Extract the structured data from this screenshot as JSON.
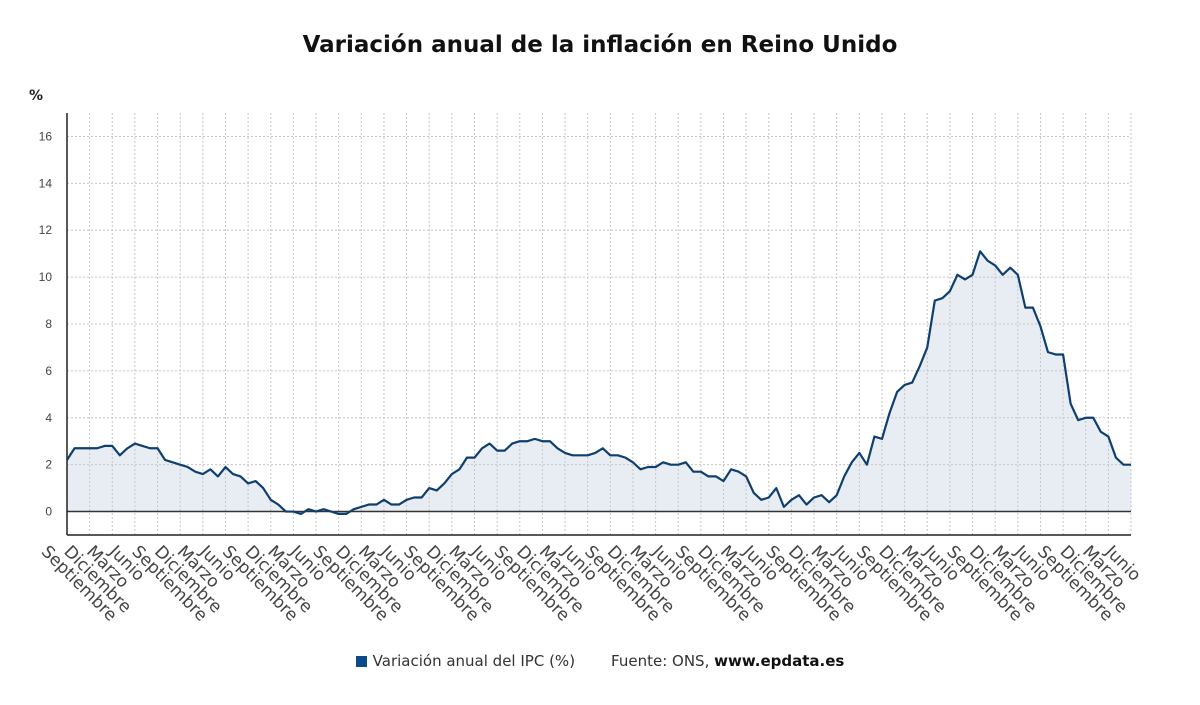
{
  "chart_data": {
    "type": "area",
    "title": "Variación anual de la inflación en Reino Unido",
    "ylabel": "%",
    "xlabel": "",
    "ylim": [
      -1,
      17
    ],
    "yticks": [
      0,
      2,
      4,
      6,
      8,
      10,
      12,
      14,
      16
    ],
    "grid": true,
    "legend_position": "bottom",
    "colors": {
      "line": "#0e3f6e",
      "fill": "#e8ecf3",
      "legend": "#0d4a8c",
      "grid": "#c6c6c6"
    },
    "xtick_labels": [
      "Septiembre",
      "Diciembre",
      "Marzo",
      "Junio",
      "Septiembre",
      "Diciembre",
      "Marzo",
      "Junio",
      "Septiembre",
      "Diciembre",
      "Marzo",
      "Junio",
      "Septiembre",
      "Diciembre",
      "Marzo",
      "Junio",
      "Septiembre",
      "Diciembre",
      "Marzo",
      "Junio",
      "Septiembre",
      "Diciembre",
      "Marzo",
      "Junio",
      "Septiembre",
      "Diciembre",
      "Marzo",
      "Junio",
      "Septiembre",
      "Diciembre",
      "Marzo",
      "Junio",
      "Septiembre",
      "Diciembre",
      "Marzo",
      "Junio",
      "Septiembre",
      "Diciembre",
      "Marzo",
      "Junio",
      "Septiembre",
      "Diciembre",
      "Marzo",
      "Junio",
      "Septiembre",
      "Diciembre",
      "Marzo",
      "Junio"
    ],
    "series": [
      {
        "name": "Variación anual del IPC (%)",
        "values": [
          2.2,
          2.7,
          2.7,
          2.7,
          2.7,
          2.8,
          2.8,
          2.4,
          2.7,
          2.9,
          2.8,
          2.7,
          2.7,
          2.2,
          2.1,
          2.0,
          1.9,
          1.7,
          1.6,
          1.8,
          1.5,
          1.9,
          1.6,
          1.5,
          1.2,
          1.3,
          1.0,
          0.5,
          0.3,
          0.0,
          0.0,
          -0.1,
          0.1,
          0.0,
          0.1,
          0.0,
          -0.1,
          -0.1,
          0.1,
          0.2,
          0.3,
          0.3,
          0.5,
          0.3,
          0.3,
          0.5,
          0.6,
          0.6,
          1.0,
          0.9,
          1.2,
          1.6,
          1.8,
          2.3,
          2.3,
          2.7,
          2.9,
          2.6,
          2.6,
          2.9,
          3.0,
          3.0,
          3.1,
          3.0,
          3.0,
          2.7,
          2.5,
          2.4,
          2.4,
          2.4,
          2.5,
          2.7,
          2.4,
          2.4,
          2.3,
          2.1,
          1.8,
          1.9,
          1.9,
          2.1,
          2.0,
          2.0,
          2.1,
          1.7,
          1.7,
          1.5,
          1.5,
          1.3,
          1.8,
          1.7,
          1.5,
          0.8,
          0.5,
          0.6,
          1.0,
          0.2,
          0.5,
          0.7,
          0.3,
          0.6,
          0.7,
          0.4,
          0.7,
          1.5,
          2.1,
          2.5,
          2.0,
          3.2,
          3.1,
          4.2,
          5.1,
          5.4,
          5.5,
          6.2,
          7.0,
          9.0,
          9.1,
          9.4,
          10.1,
          9.9,
          10.1,
          11.1,
          10.7,
          10.5,
          10.1,
          10.4,
          10.1,
          8.7,
          8.7,
          7.9,
          6.8,
          6.7,
          6.7,
          4.6,
          3.9,
          4.0,
          4.0,
          3.4,
          3.2,
          2.3,
          2.0,
          2.0
        ]
      }
    ]
  },
  "axis": {
    "y_unit": "%"
  },
  "legend": {
    "label": "Variación anual del IPC (%)",
    "source_prefix": "Fuente: ONS,",
    "source_site": "www.epdata.es"
  }
}
